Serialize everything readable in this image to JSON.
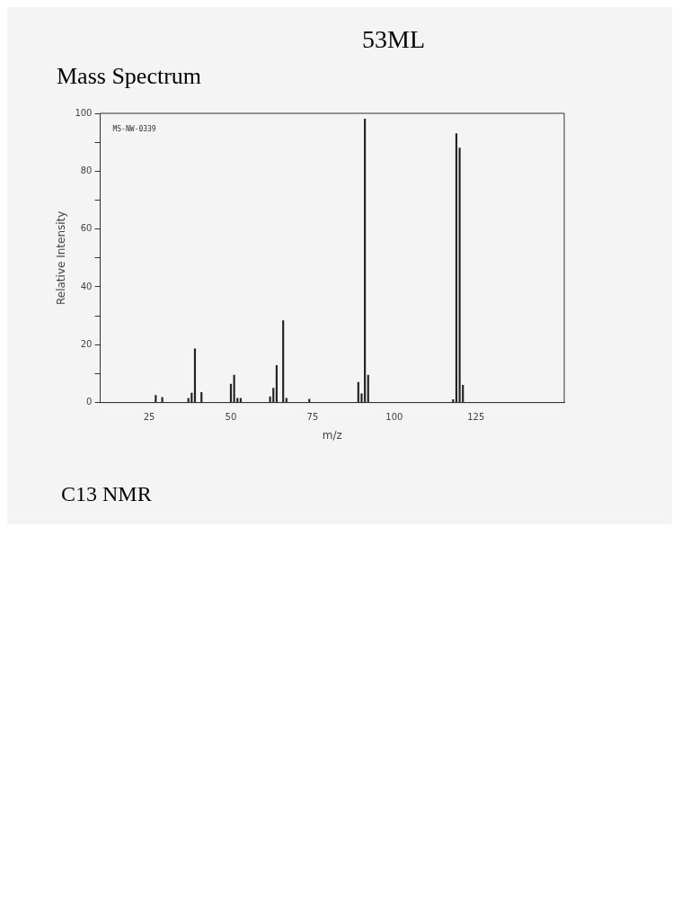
{
  "chart_data": {
    "type": "bar",
    "title": "53ML",
    "subtitle": "Mass Spectrum",
    "xlabel": "m/z",
    "ylabel": "Relative Intensity",
    "annotations": [
      "MS-NW-0339",
      "C13 NMR"
    ],
    "x": [
      27,
      29,
      37,
      38,
      39,
      41,
      50,
      51,
      52,
      53,
      62,
      63,
      64,
      66,
      67,
      74,
      89,
      90,
      91,
      92,
      118,
      119,
      120,
      121
    ],
    "values": [
      2.5,
      1.8,
      1.5,
      3.3,
      18.6,
      3.5,
      6.4,
      9.5,
      1.5,
      1.5,
      2,
      5,
      12.8,
      28.3,
      1.5,
      1.2,
      7,
      3,
      98,
      9.5,
      1,
      93,
      88,
      6
    ],
    "color": "#222222",
    "xlim": [
      10,
      152
    ],
    "ylim": [
      0,
      100
    ],
    "xticks": [
      25,
      50,
      75,
      100,
      125
    ],
    "yticks": [
      0,
      {
        "value": 10,
        "label": null
      },
      20,
      {
        "value": 30,
        "label": null
      },
      40,
      {
        "value": 50,
        "label": null
      },
      60,
      {
        "value": 70,
        "label": null
      },
      80,
      {
        "value": 90,
        "label": null
      },
      100
    ],
    "grid": false,
    "legend": false
  }
}
